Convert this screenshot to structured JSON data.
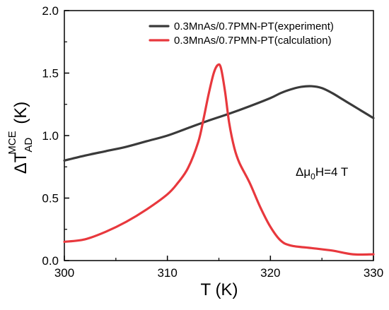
{
  "chart_data": {
    "type": "line",
    "title": "",
    "xlabel": "T (K)",
    "ylabel": {
      "prefix": "ΔT",
      "subscript": "AD",
      "superscript": "MCE",
      "suffix": " (K)"
    },
    "xlim": [
      300,
      330
    ],
    "ylim": [
      0.0,
      2.0
    ],
    "xticks": [
      300,
      310,
      320,
      330
    ],
    "yticks": [
      0.0,
      0.5,
      1.0,
      1.5,
      2.0
    ],
    "xtick_labels": [
      "300",
      "310",
      "320",
      "330"
    ],
    "ytick_labels": [
      "0.0",
      "0.5",
      "1.0",
      "1.5",
      "2.0"
    ],
    "grid": false,
    "legend_position": "top-right",
    "annotation": {
      "prefix": "Δμ",
      "subscript": "0",
      "suffix": "H=4 T"
    },
    "series": [
      {
        "name": "0.3MnAs/0.7PMN-PT(experiment)",
        "color": "#3a3a3a",
        "points": [
          [
            300,
            0.8
          ],
          [
            302,
            0.84
          ],
          [
            304,
            0.875
          ],
          [
            306,
            0.91
          ],
          [
            308,
            0.955
          ],
          [
            310,
            1.0
          ],
          [
            312,
            1.06
          ],
          [
            314,
            1.12
          ],
          [
            316,
            1.175
          ],
          [
            318,
            1.235
          ],
          [
            320,
            1.3
          ],
          [
            321,
            1.34
          ],
          [
            322,
            1.37
          ],
          [
            323,
            1.39
          ],
          [
            324,
            1.395
          ],
          [
            325,
            1.38
          ],
          [
            326,
            1.34
          ],
          [
            327,
            1.29
          ],
          [
            328,
            1.24
          ],
          [
            329,
            1.19
          ],
          [
            330,
            1.14
          ]
        ]
      },
      {
        "name": "0.3MnAs/0.7PMN-PT(calculation)",
        "color": "#e8383d",
        "points": [
          [
            300,
            0.15
          ],
          [
            302,
            0.17
          ],
          [
            304,
            0.23
          ],
          [
            306,
            0.31
          ],
          [
            308,
            0.41
          ],
          [
            310,
            0.53
          ],
          [
            311,
            0.62
          ],
          [
            312,
            0.74
          ],
          [
            313,
            0.95
          ],
          [
            313.5,
            1.13
          ],
          [
            314,
            1.33
          ],
          [
            314.5,
            1.5
          ],
          [
            314.9,
            1.565
          ],
          [
            315.2,
            1.54
          ],
          [
            315.6,
            1.35
          ],
          [
            316,
            1.1
          ],
          [
            316.5,
            0.9
          ],
          [
            317,
            0.78
          ],
          [
            318,
            0.62
          ],
          [
            319,
            0.43
          ],
          [
            320,
            0.27
          ],
          [
            321,
            0.16
          ],
          [
            322,
            0.12
          ],
          [
            324,
            0.1
          ],
          [
            326,
            0.08
          ],
          [
            328,
            0.05
          ],
          [
            330,
            0.05
          ]
        ]
      }
    ]
  }
}
